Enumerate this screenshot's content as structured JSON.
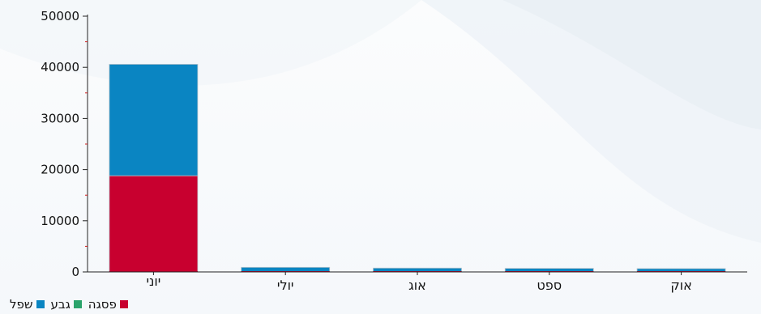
{
  "chart_data": {
    "type": "bar",
    "stacked": true,
    "categories": [
      "יוני",
      "יולי",
      "אוג",
      "ספט",
      "אוק"
    ],
    "series": [
      {
        "name": "פסגה",
        "color": "#c8002f",
        "values": [
          18800,
          0,
          0,
          0,
          0
        ]
      },
      {
        "name": "גבע",
        "color": "#2aa36b",
        "values": [
          0,
          0,
          0,
          0,
          0
        ]
      },
      {
        "name": "שפל",
        "color": "#0a85c2",
        "values": [
          21800,
          900,
          750,
          700,
          650
        ]
      }
    ],
    "y_ticks": [
      "0",
      "10000",
      "20000",
      "30000",
      "40000",
      "50000"
    ],
    "ylim": [
      0,
      50000
    ],
    "grid": false,
    "legend_position": "bottom-left"
  },
  "legend_items": [
    {
      "label": "פסגה",
      "color": "#c8002f"
    },
    {
      "label": "גבע",
      "color": "#2aa36b"
    },
    {
      "label": "שפל",
      "color": "#0a85c2"
    }
  ]
}
